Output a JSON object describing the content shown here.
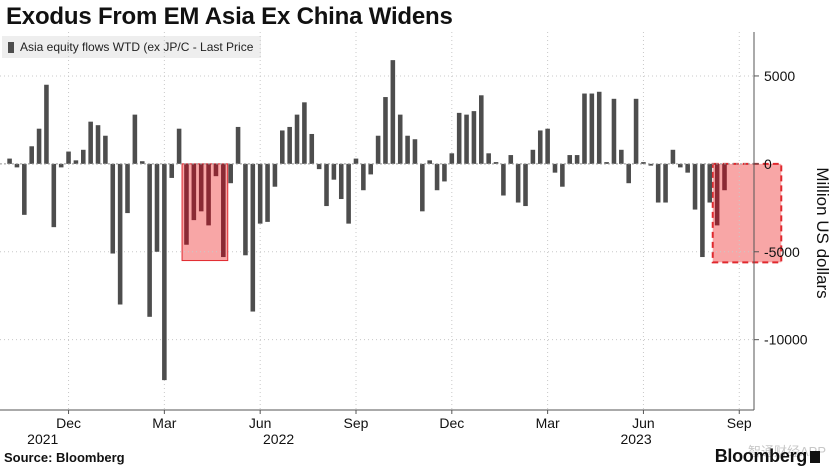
{
  "chart_data": {
    "type": "bar",
    "title": "Exodus From EM Asia Ex China Widens",
    "legend": [
      "Asia equity flows WTD (ex JP/C - Last Price"
    ],
    "ylabel": "Million US dollars",
    "ylim": [
      -14000,
      7500
    ],
    "yticks": [
      5000,
      0,
      -5000,
      -10000
    ],
    "ytick_labels": [
      "5000",
      "0",
      "-5000",
      "-10000"
    ],
    "xlim": [
      -1.3,
      101
    ],
    "series": [
      {
        "name": "Asia equity flows WTD (ex JP/C - Last Price",
        "values": [
          300,
          -200,
          -2900,
          1000,
          2000,
          4500,
          -3600,
          -200,
          700,
          200,
          800,
          2400,
          2200,
          1600,
          -5100,
          -8000,
          -2800,
          2800,
          150,
          -8700,
          -5000,
          -12300,
          -800,
          2000,
          -4600,
          -3200,
          -2700,
          -3500,
          -700,
          -5300,
          -1100,
          2100,
          -5200,
          -8400,
          -3400,
          -3300,
          -1300,
          1900,
          2100,
          2800,
          3500,
          1700,
          -300,
          -2400,
          -900,
          -2000,
          -3400,
          300,
          -1500,
          -600,
          1600,
          3800,
          5900,
          2800,
          1600,
          1400,
          -2700,
          200,
          -1500,
          -1000,
          600,
          2900,
          2800,
          3000,
          3900,
          600,
          100,
          -1800,
          500,
          -2200,
          -2400,
          800,
          1900,
          2000,
          -500,
          -1300,
          500,
          500,
          4000,
          4000,
          4100,
          100,
          3700,
          800,
          -1100,
          3700,
          100,
          -100,
          -2200,
          -2200,
          800,
          -200,
          -500,
          -2600,
          -5300,
          -2200,
          -3500,
          -1500
        ],
        "color": "#4d4d4d"
      }
    ],
    "x_tick_labels": [
      {
        "label": "Dec",
        "x": 8
      },
      {
        "label": "Mar",
        "x": 21
      },
      {
        "label": "Jun",
        "x": 34
      },
      {
        "label": "Sep",
        "x": 47
      },
      {
        "label": "Dec",
        "x": 60
      },
      {
        "label": "Mar",
        "x": 73
      },
      {
        "label": "Jun",
        "x": 86
      },
      {
        "label": "Sep",
        "x": 99
      }
    ],
    "year_labels": [
      {
        "label": "2021",
        "x": 4.5
      },
      {
        "label": "2022",
        "x": 36.5
      },
      {
        "label": "2023",
        "x": 85
      }
    ],
    "highlights": [
      {
        "x_start": 23.4,
        "x_end": 29.6,
        "y_top": 0,
        "y_bottom": -5500,
        "style": "solid"
      },
      {
        "x_start": 95.4,
        "x_end": 104.7,
        "y_top": 0,
        "y_bottom": -5600,
        "style": "dashed"
      }
    ],
    "highlight_color": "#f25c5c",
    "grid": true
  },
  "footer": {
    "source": "Source: Bloomberg",
    "brand": "Bloomberg",
    "watermark": "智通财经APP"
  }
}
